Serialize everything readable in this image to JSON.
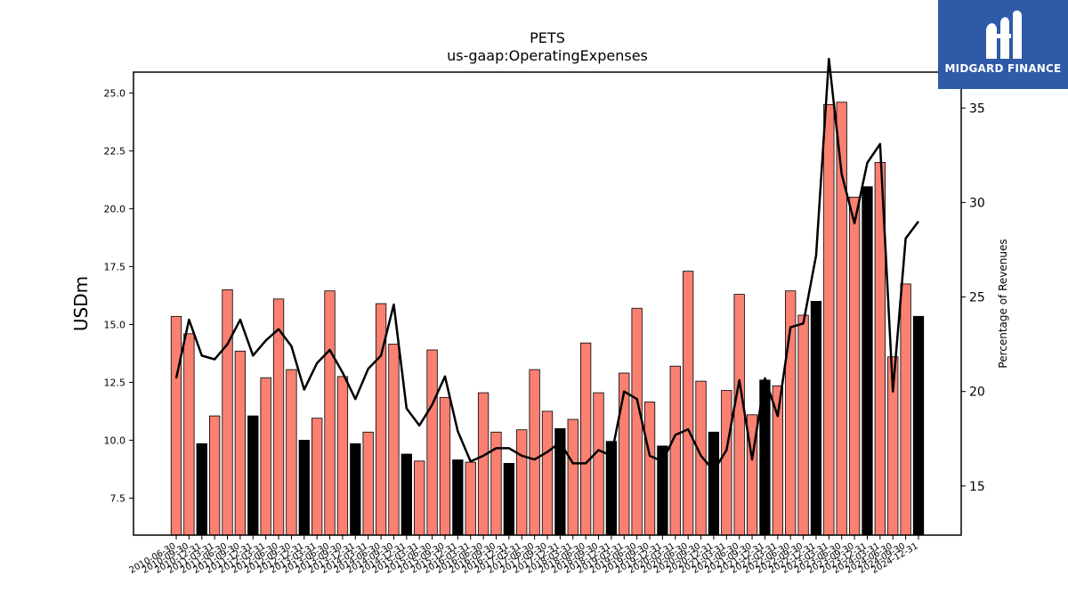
{
  "chart_data": {
    "type": "bar",
    "title": "PETS",
    "subtitle": "us-gaap:OperatingExpenses",
    "ylabel": "USDm",
    "y2label": "Percentage of Revenues",
    "ylim": [
      5.9,
      25.9
    ],
    "y2lim": [
      12.4,
      36.9
    ],
    "yticks": [
      7.5,
      10.0,
      12.5,
      15.0,
      17.5,
      20.0,
      22.5,
      25.0
    ],
    "y2ticks": [
      15,
      20,
      25,
      30,
      35
    ],
    "categories": [
      "2010-06-30",
      "2010-09-30",
      "2010-12-31",
      "2011-03-31",
      "2011-06-30",
      "2011-09-30",
      "2011-12-31",
      "2012-03-31",
      "2012-06-30",
      "2012-09-30",
      "2012-12-31",
      "2013-03-31",
      "2013-06-30",
      "2013-09-30",
      "2013-12-31",
      "2014-03-31",
      "2014-06-30",
      "2014-09-30",
      "2014-12-31",
      "2015-03-31",
      "2015-06-30",
      "2015-09-30",
      "2015-12-31",
      "2016-03-31",
      "2016-06-30",
      "2016-09-30",
      "2016-12-31",
      "2017-03-31",
      "2017-06-30",
      "2017-09-30",
      "2017-12-31",
      "2018-03-31",
      "2018-06-30",
      "2018-09-30",
      "2018-12-31",
      "2019-03-31",
      "2019-06-30",
      "2019-09-30",
      "2019-12-31",
      "2020-03-31",
      "2020-06-30",
      "2020-09-30",
      "2020-12-31",
      "2021-03-31",
      "2021-06-30",
      "2021-09-30",
      "2021-12-31",
      "2022-03-31",
      "2022-06-30",
      "2022-09-30",
      "2022-12-31",
      "2023-03-31",
      "2023-06-30",
      "2023-09-30",
      "2023-12-31",
      "2024-03-31",
      "2024-06-30",
      "2024-09-30",
      "2024-12-31"
    ],
    "series": [
      {
        "type": "bar",
        "values": [
          15.35,
          14.6,
          9.85,
          11.05,
          16.5,
          13.85,
          11.05,
          12.7,
          16.1,
          13.05,
          10.0,
          10.95,
          16.45,
          12.75,
          9.85,
          10.35,
          15.9,
          14.15,
          9.4,
          9.1,
          13.9,
          11.85,
          9.15,
          9.05,
          12.05,
          10.35,
          9.0,
          10.45,
          13.05,
          11.25,
          10.5,
          10.9,
          14.2,
          12.05,
          9.95,
          12.9,
          15.7,
          11.65,
          9.75,
          13.2,
          17.3,
          12.55,
          10.35,
          12.15,
          16.3,
          11.1,
          12.6,
          12.35,
          16.45,
          15.4,
          16.0,
          24.5,
          24.6,
          20.5,
          20.95,
          22.0,
          13.6,
          16.75,
          15.35
        ],
        "highlight": [
          false,
          false,
          true,
          false,
          false,
          false,
          true,
          false,
          false,
          false,
          true,
          false,
          false,
          false,
          true,
          false,
          false,
          false,
          true,
          false,
          false,
          false,
          true,
          false,
          false,
          false,
          true,
          false,
          false,
          false,
          true,
          false,
          false,
          false,
          true,
          false,
          false,
          false,
          true,
          false,
          false,
          false,
          true,
          false,
          false,
          false,
          true,
          false,
          false,
          false,
          true,
          false,
          false,
          false,
          true,
          false,
          false,
          false,
          true
        ],
        "color": "#fa8072",
        "highlight_color": "#000000"
      },
      {
        "type": "line",
        "axis": "right",
        "values": [
          20.7,
          23.8,
          21.9,
          21.7,
          22.5,
          23.8,
          21.9,
          22.7,
          23.3,
          22.4,
          20.1,
          21.5,
          22.2,
          21.0,
          19.6,
          21.2,
          21.9,
          24.6,
          19.1,
          18.2,
          19.3,
          20.8,
          17.9,
          16.3,
          16.6,
          17.0,
          17.0,
          16.6,
          16.4,
          16.8,
          17.3,
          16.2,
          16.2,
          16.9,
          16.6,
          20.0,
          19.6,
          16.6,
          16.3,
          17.7,
          18.0,
          16.6,
          15.8,
          16.9,
          20.6,
          16.4,
          20.7,
          18.7,
          23.4,
          23.6,
          27.2,
          37.6,
          31.5,
          28.9,
          32.1,
          33.1,
          20.0,
          28.1,
          29.0
        ],
        "color": "#000000"
      }
    ]
  },
  "logo": {
    "text": "MIDGARD FINANCE",
    "color": "#2e5aa8"
  }
}
